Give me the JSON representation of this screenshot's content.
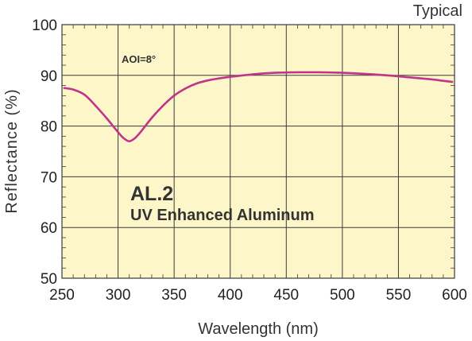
{
  "chart_data": {
    "type": "line",
    "title": "",
    "corner_label": "Typical",
    "xlabel": "Wavelength (nm)",
    "ylabel": "Reflectance (%)",
    "xlim": [
      250,
      600
    ],
    "ylim": [
      50,
      100
    ],
    "x_ticks": [
      250,
      300,
      350,
      400,
      450,
      500,
      550,
      600
    ],
    "y_ticks": [
      50,
      60,
      70,
      80,
      90,
      100
    ],
    "grid": true,
    "minor_grid_x_step": 10,
    "minor_grid_y_step": 2,
    "annotations": {
      "aoi": "AOI=8°",
      "product_code": "AL.2",
      "product_name": "UV Enhanced Aluminum"
    },
    "colors": {
      "plot_background": "#fdf6c8",
      "grid": "#3a3a3a",
      "series": "#c0348a"
    },
    "series": [
      {
        "x": [
          252,
          260,
          270,
          280,
          290,
          300,
          305,
          310,
          315,
          320,
          330,
          340,
          350,
          360,
          370,
          380,
          390,
          400,
          420,
          440,
          460,
          480,
          500,
          520,
          540,
          560,
          580,
          598
        ],
        "y": [
          87.5,
          87.2,
          86.2,
          84.0,
          81.5,
          78.8,
          77.6,
          77.0,
          77.6,
          78.8,
          81.6,
          84.0,
          86.0,
          87.4,
          88.4,
          89.0,
          89.4,
          89.7,
          90.2,
          90.5,
          90.6,
          90.6,
          90.5,
          90.3,
          90.0,
          89.6,
          89.2,
          88.7
        ]
      }
    ]
  }
}
